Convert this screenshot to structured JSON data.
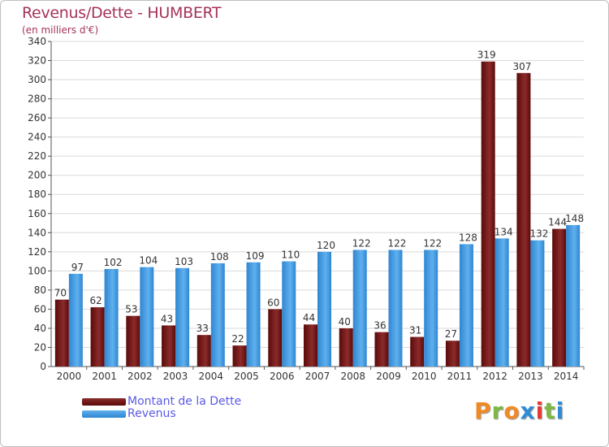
{
  "header": {
    "title": "Revenus/Dette - HUMBERT",
    "subtitle": "(en milliers d'€)"
  },
  "legend": {
    "items": [
      {
        "label": "Montant de la Dette",
        "color": "#6b1010"
      },
      {
        "label": "Revenus",
        "color": "#4aa3e6"
      }
    ]
  },
  "logo": {
    "letters": [
      "P",
      "r",
      "o",
      "x",
      "i",
      "t",
      "i"
    ],
    "colors": [
      "#f08a24",
      "#7cb842",
      "#f08a24",
      "#2e8bd6",
      "#e53935",
      "#7cb842",
      "#2e8bd6"
    ]
  },
  "colors": {
    "debt_dark": "#5a0a0a",
    "debt_light": "#8c2b2b",
    "revenue_dark": "#2f86d0",
    "revenue_light": "#5fb0ee",
    "title": "#a6335a",
    "axis": "#555555",
    "grid": "#d9d9d9"
  },
  "chart_data": {
    "type": "bar",
    "categories": [
      "2000",
      "2001",
      "2002",
      "2003",
      "2004",
      "2005",
      "2006",
      "2007",
      "2008",
      "2009",
      "2010",
      "2011",
      "2012",
      "2013",
      "2014"
    ],
    "series": [
      {
        "name": "Montant de la Dette",
        "values": [
          70,
          62,
          53,
          43,
          33,
          22,
          60,
          44,
          40,
          36,
          31,
          27,
          319,
          307,
          144
        ]
      },
      {
        "name": "Revenus",
        "values": [
          97,
          102,
          104,
          103,
          108,
          109,
          110,
          120,
          122,
          122,
          122,
          128,
          134,
          132,
          148
        ]
      }
    ],
    "ylim": [
      0,
      340
    ],
    "ytick_step": 20,
    "grid": true,
    "legend_position": "bottom-left"
  }
}
